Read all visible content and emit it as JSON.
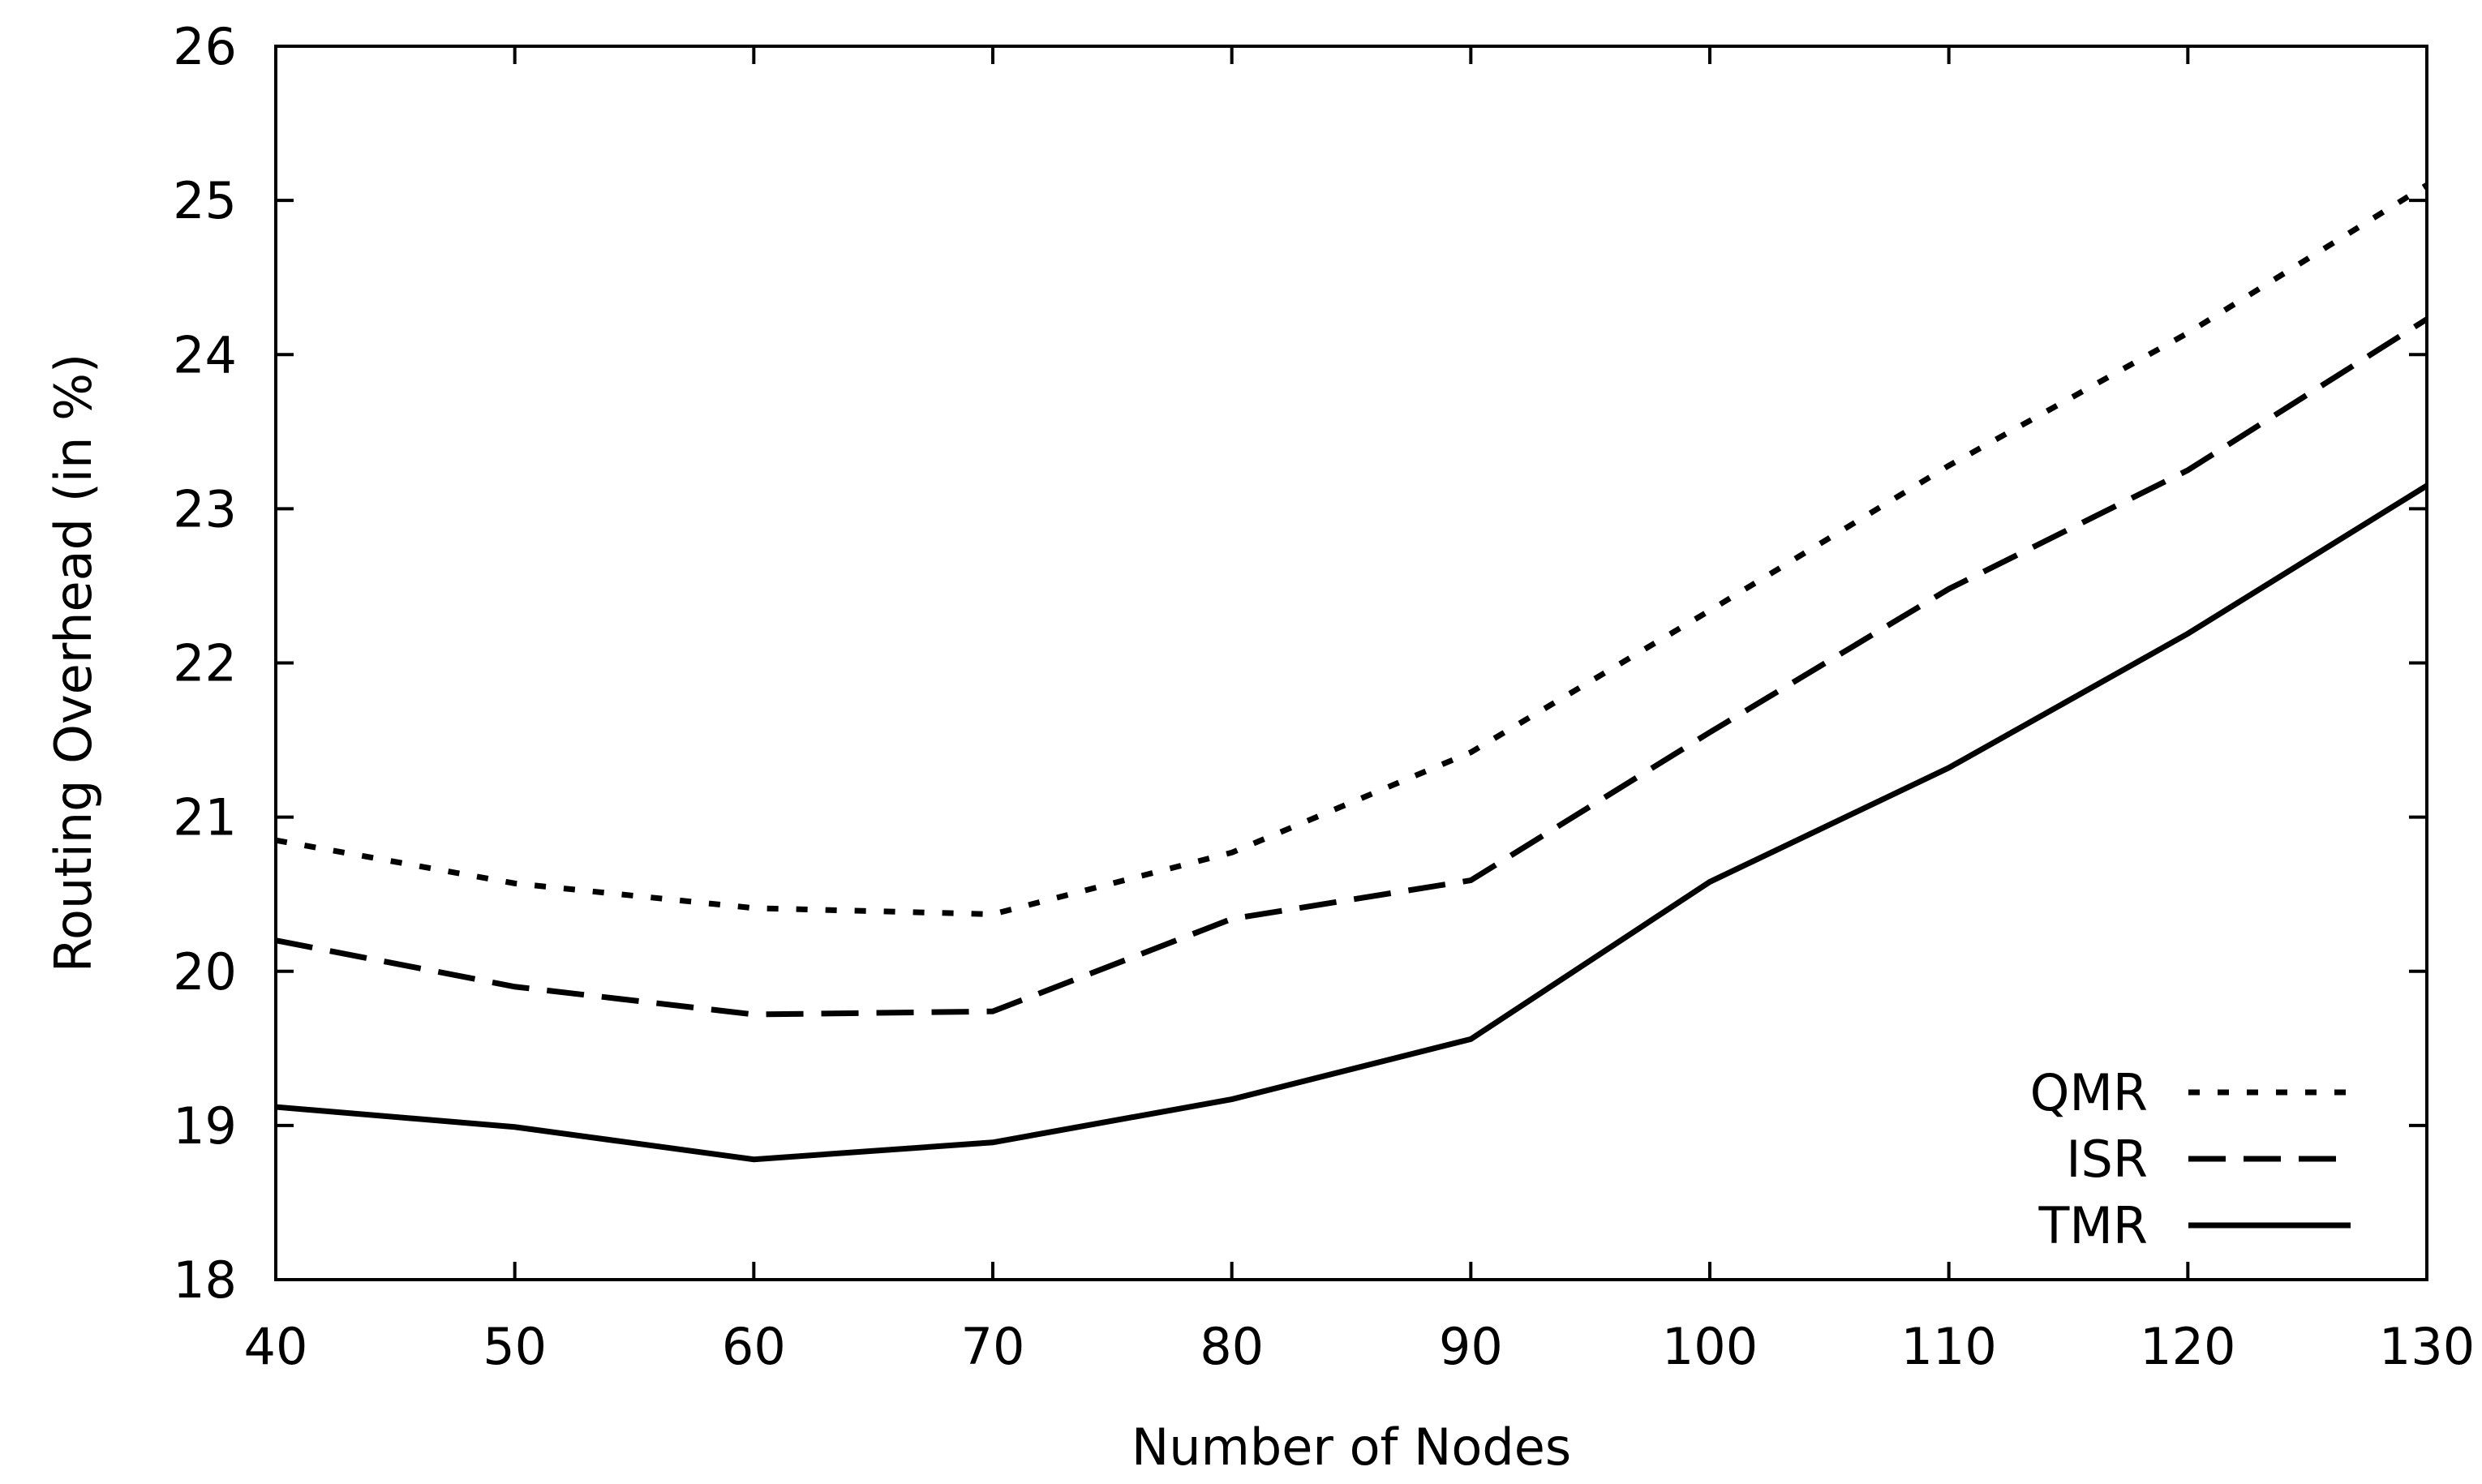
{
  "chart_data": {
    "type": "line",
    "title": "",
    "xlabel": "Number of Nodes",
    "ylabel": "Routing Overhead (in %)",
    "xlim": [
      40,
      130
    ],
    "ylim": [
      18,
      26
    ],
    "x_ticks": [
      40,
      50,
      60,
      70,
      80,
      90,
      100,
      110,
      120,
      130
    ],
    "y_ticks": [
      18,
      19,
      20,
      21,
      22,
      23,
      24,
      25,
      26
    ],
    "x": [
      40,
      50,
      60,
      70,
      80,
      90,
      100,
      110,
      120,
      130
    ],
    "series": [
      {
        "name": "QMR",
        "style": "dotted",
        "values": [
          20.85,
          20.57,
          20.41,
          20.37,
          20.77,
          21.42,
          22.34,
          23.28,
          24.14,
          25.1
        ]
      },
      {
        "name": "ISR",
        "style": "dashed",
        "values": [
          20.2,
          19.9,
          19.72,
          19.74,
          20.34,
          20.59,
          21.55,
          22.48,
          23.25,
          24.23
        ]
      },
      {
        "name": "TMR",
        "style": "solid",
        "values": [
          19.12,
          18.99,
          18.78,
          18.89,
          19.17,
          19.56,
          20.58,
          21.32,
          22.19,
          23.15
        ]
      }
    ],
    "legend": {
      "position": "bottom-right"
    },
    "grid": false
  }
}
